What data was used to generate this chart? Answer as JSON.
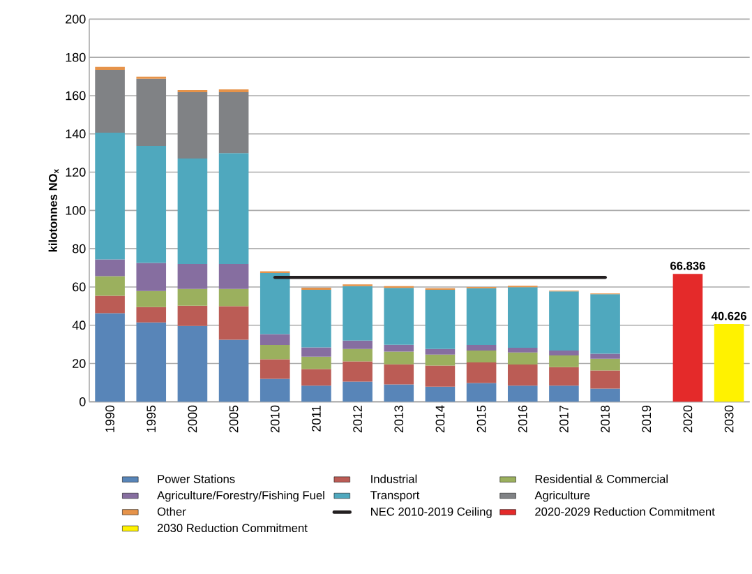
{
  "chart_data": {
    "type": "bar",
    "stacked": true,
    "ylabel": "kilotonnes NO$_{x}$",
    "categories": [
      "1990",
      "1995",
      "2000",
      "2005",
      "2010",
      "2011",
      "2012",
      "2013",
      "2014",
      "2015",
      "2016",
      "2017",
      "2018",
      "2019",
      "2020",
      "2030"
    ],
    "ylim": [
      0,
      200
    ],
    "yticks": [
      0,
      20,
      40,
      60,
      80,
      100,
      120,
      140,
      160,
      180,
      200
    ],
    "grid": "y",
    "legend": "bottom",
    "series": [
      {
        "name": "Power Stations",
        "color": "#5885b8",
        "values": [
          46.3,
          41.5,
          39.6,
          32.4,
          12.0,
          8.4,
          10.5,
          9.1,
          7.9,
          9.8,
          8.4,
          8.4,
          6.9,
          null,
          null,
          null
        ]
      },
      {
        "name": "Industrial",
        "color": "#bb5c55",
        "values": [
          9.1,
          8.0,
          10.6,
          17.5,
          10.2,
          8.7,
          10.6,
          10.5,
          11.0,
          10.8,
          11.1,
          9.7,
          9.5,
          null,
          null,
          null
        ]
      },
      {
        "name": "Residential & Commercial",
        "color": "#9bb05e",
        "values": [
          10.2,
          8.4,
          8.8,
          9.1,
          7.5,
          6.5,
          6.5,
          6.6,
          5.8,
          6.2,
          6.3,
          6.1,
          6.1,
          null,
          null,
          null
        ]
      },
      {
        "name": "Agriculture/Forestry/Fishing Fuel",
        "color": "#866ea0",
        "values": [
          8.8,
          14.7,
          13.0,
          13.0,
          5.6,
          4.8,
          4.4,
          3.6,
          2.9,
          2.9,
          2.4,
          2.6,
          2.6,
          null,
          null,
          null
        ]
      },
      {
        "name": "Transport",
        "color": "#4fa8be",
        "values": [
          66.2,
          61.1,
          55.1,
          58.0,
          32.0,
          30.1,
          28.4,
          29.7,
          30.9,
          29.6,
          31.7,
          30.9,
          31.1,
          null,
          null,
          null
        ]
      },
      {
        "name": "Agriculture",
        "color": "#808285",
        "values": [
          32.9,
          35.1,
          34.7,
          31.8,
          null,
          null,
          null,
          null,
          null,
          null,
          null,
          null,
          null,
          null,
          null,
          null
        ]
      },
      {
        "name": "Other",
        "color": "#e6934a",
        "values": [
          1.5,
          1.1,
          1.1,
          1.5,
          0.9,
          1.1,
          0.9,
          0.9,
          0.8,
          0.7,
          0.7,
          0.4,
          0.4,
          null,
          null,
          null
        ]
      },
      {
        "name": "NEC 2010-2019 Ceiling",
        "type": "line",
        "line_style": "solid",
        "marker": "none",
        "color": "#231f20",
        "values": [
          null,
          null,
          null,
          null,
          65,
          65,
          65,
          65,
          65,
          65,
          65,
          65,
          65,
          null,
          null,
          null
        ]
      },
      {
        "name": "2020-2029 Reduction Commitment",
        "color": "#e42a2a",
        "values": [
          null,
          null,
          null,
          null,
          null,
          null,
          null,
          null,
          null,
          null,
          null,
          null,
          null,
          null,
          66.836,
          null
        ],
        "value_labels": [
          null,
          null,
          null,
          null,
          null,
          null,
          null,
          null,
          null,
          null,
          null,
          null,
          null,
          null,
          "66.836",
          null
        ]
      },
      {
        "name": "2030 Reduction Commitment",
        "color": "#fff200",
        "values": [
          null,
          null,
          null,
          null,
          null,
          null,
          null,
          null,
          null,
          null,
          null,
          null,
          null,
          null,
          null,
          40.626
        ],
        "value_labels": [
          null,
          null,
          null,
          null,
          null,
          null,
          null,
          null,
          null,
          null,
          null,
          null,
          null,
          null,
          null,
          "40.626"
        ]
      }
    ]
  }
}
